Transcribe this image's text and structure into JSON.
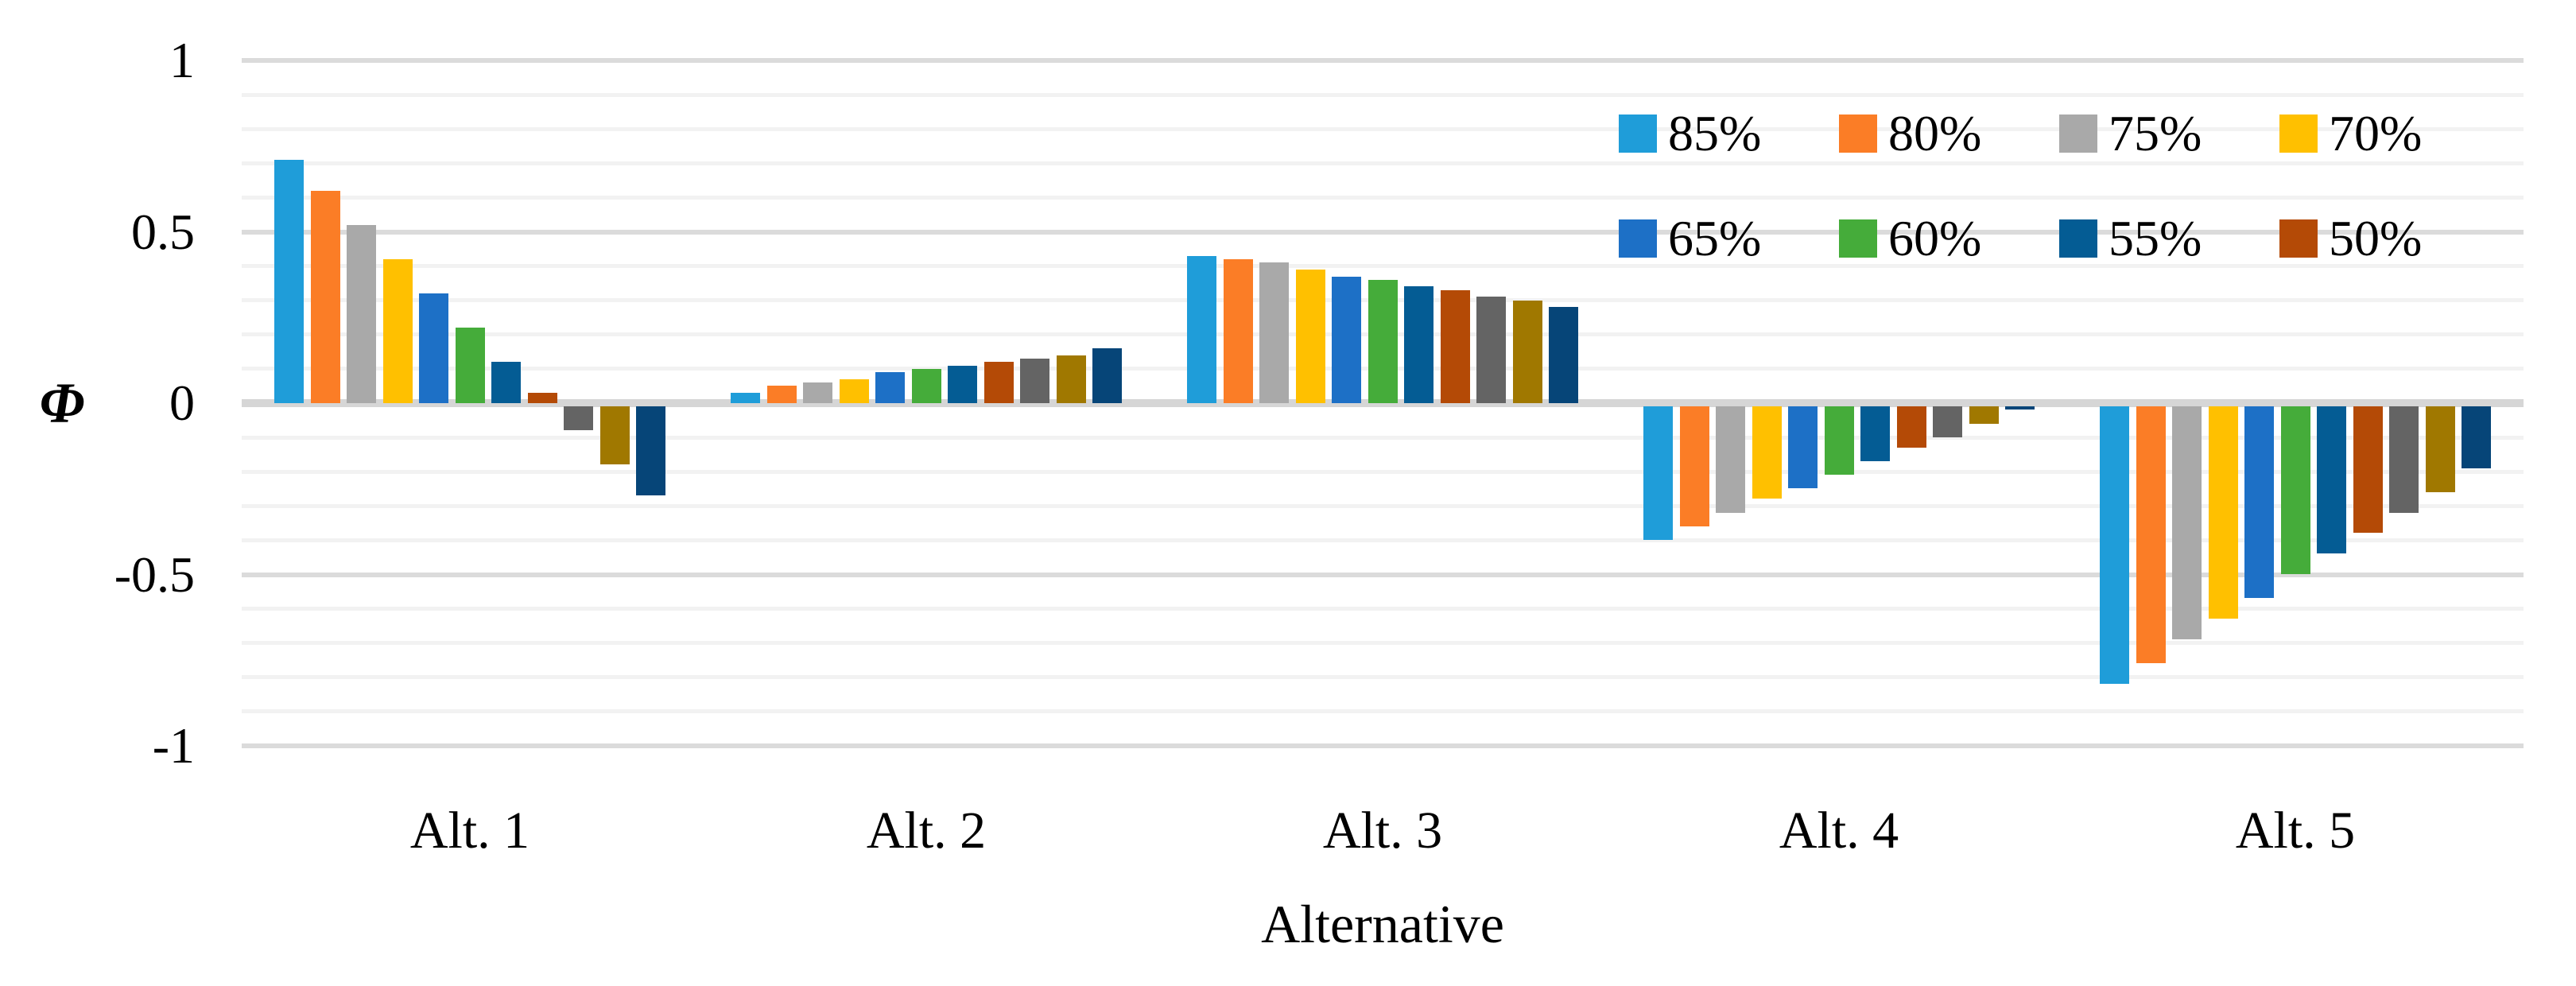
{
  "chart_data": {
    "type": "bar",
    "title": "",
    "xlabel": "Alternative",
    "ylabel": "Φ",
    "ylim": [
      -1,
      1
    ],
    "ytick_labels": [
      "1",
      "0.5",
      "0",
      "-0.5",
      "-1"
    ],
    "ytick_values": [
      1,
      0.5,
      0,
      -0.5,
      -1
    ],
    "minor_grid_step": 0.1,
    "grid": "horizontal",
    "legend_position": "top-right, 2 rows x 4 columns, inside plot",
    "categories": [
      "Alt. 1",
      "Alt. 2",
      "Alt. 3",
      "Alt. 4",
      "Alt. 5"
    ],
    "series": [
      {
        "name": "85%",
        "color": "#1f9dd9",
        "in_legend": true,
        "values": [
          0.71,
          0.03,
          0.43,
          -0.39,
          -0.81
        ]
      },
      {
        "name": "80%",
        "color": "#fb7d26",
        "in_legend": true,
        "values": [
          0.62,
          0.05,
          0.42,
          -0.35,
          -0.75
        ]
      },
      {
        "name": "75%",
        "color": "#a9a9a9",
        "in_legend": true,
        "values": [
          0.52,
          0.06,
          0.41,
          -0.31,
          -0.68
        ]
      },
      {
        "name": "70%",
        "color": "#ffc000",
        "in_legend": true,
        "values": [
          0.42,
          0.07,
          0.39,
          -0.27,
          -0.62
        ]
      },
      {
        "name": "65%",
        "color": "#1d70c6",
        "in_legend": true,
        "values": [
          0.32,
          0.09,
          0.37,
          -0.24,
          -0.56
        ]
      },
      {
        "name": "60%",
        "color": "#45ac3a",
        "in_legend": true,
        "values": [
          0.22,
          0.1,
          0.36,
          -0.2,
          -0.49
        ]
      },
      {
        "name": "55%",
        "color": "#045c94",
        "in_legend": true,
        "values": [
          0.12,
          0.11,
          0.34,
          -0.16,
          -0.43
        ]
      },
      {
        "name": "50%",
        "color": "#b44a06",
        "in_legend": true,
        "values": [
          0.03,
          0.12,
          0.33,
          -0.12,
          -0.37
        ]
      },
      {
        "name": "",
        "color": "#646464",
        "in_legend": false,
        "values": [
          -0.07,
          0.13,
          0.31,
          -0.09,
          -0.31
        ]
      },
      {
        "name": "",
        "color": "#a07800",
        "in_legend": false,
        "values": [
          -0.17,
          0.14,
          0.3,
          -0.05,
          -0.25
        ]
      },
      {
        "name": "",
        "color": "#064578",
        "in_legend": false,
        "values": [
          -0.26,
          0.16,
          0.28,
          -0.01,
          -0.18
        ]
      }
    ]
  }
}
